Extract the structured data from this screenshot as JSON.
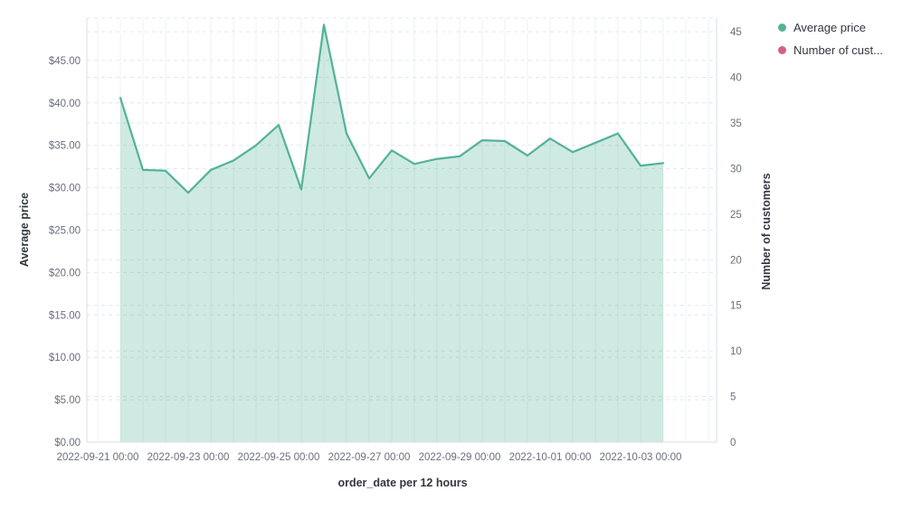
{
  "legend": {
    "items": [
      {
        "label": "Average price",
        "color": "#54b399"
      },
      {
        "label": "Number of cust...",
        "color": "#d36086"
      }
    ]
  },
  "axes": {
    "left": {
      "title": "Average price",
      "tick_labels": [
        "$0.00",
        "$5.00",
        "$10.00",
        "$15.00",
        "$20.00",
        "$25.00",
        "$30.00",
        "$35.00",
        "$40.00",
        "$45.00"
      ],
      "tick_interval": 5
    },
    "right": {
      "title": "Number of customers",
      "tick_labels": [
        "0",
        "5",
        "10",
        "15",
        "20",
        "25",
        "30",
        "35",
        "40",
        "45"
      ],
      "tick_interval": 5
    },
    "x": {
      "title": "order_date per 12 hours",
      "tick_labels": [
        "2022-09-21 00:00",
        "2022-09-23 00:00",
        "2022-09-25 00:00",
        "2022-09-27 00:00",
        "2022-09-29 00:00",
        "2022-10-01 00:00",
        "2022-10-03 00:00"
      ],
      "tick_steps": [
        0,
        4,
        8,
        12,
        16,
        20,
        24
      ]
    }
  },
  "chart_data": {
    "type": "area",
    "xlabel": "order_date per 12 hours",
    "ylabel": "Average price",
    "ylabel_right": "Number of customers",
    "ylim_left": [
      0,
      50
    ],
    "ylim_right": [
      0,
      46.5
    ],
    "x_step_hours": 12,
    "grid": true,
    "legend_position": "top-right",
    "start_step": 1,
    "x": [
      "2022-09-21 12:00",
      "2022-09-22 00:00",
      "2022-09-22 12:00",
      "2022-09-23 00:00",
      "2022-09-23 12:00",
      "2022-09-24 00:00",
      "2022-09-24 12:00",
      "2022-09-25 00:00",
      "2022-09-25 12:00",
      "2022-09-26 00:00",
      "2022-09-26 12:00",
      "2022-09-27 00:00",
      "2022-09-27 12:00",
      "2022-09-28 00:00",
      "2022-09-28 12:00",
      "2022-09-29 00:00",
      "2022-09-29 12:00",
      "2022-09-30 00:00",
      "2022-09-30 12:00",
      "2022-10-01 00:00",
      "2022-10-01 12:00",
      "2022-10-02 00:00",
      "2022-10-02 12:00",
      "2022-10-03 00:00",
      "2022-10-03 12:00"
    ],
    "series": [
      {
        "name": "Average price",
        "axis": "left",
        "color": "#54b399",
        "fill_opacity": 0.28,
        "values": [
          40.6,
          32.1,
          32.0,
          29.4,
          32.1,
          33.2,
          35.0,
          37.4,
          29.8,
          49.2,
          36.4,
          31.1,
          34.4,
          32.8,
          33.4,
          33.7,
          35.6,
          35.5,
          33.8,
          35.8,
          34.2,
          35.3,
          36.4,
          32.6,
          32.9
        ]
      },
      {
        "name": "Number of customers",
        "axis": "right",
        "color": "#d36086",
        "values": []
      }
    ]
  }
}
